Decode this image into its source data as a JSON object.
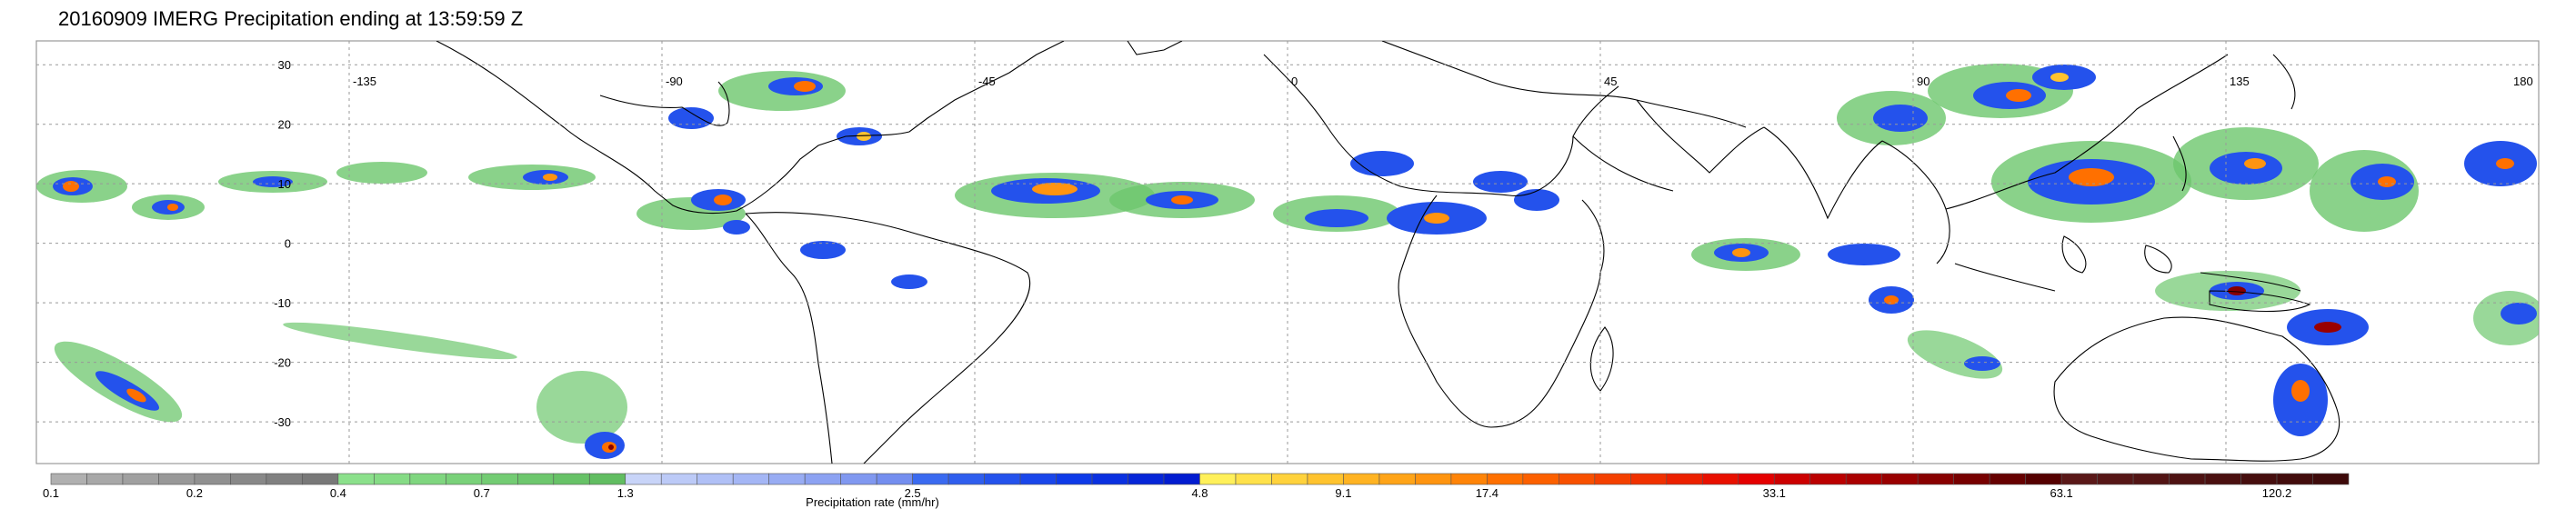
{
  "title": "20160909 IMERG Precipitation ending at 13:59:59 Z",
  "map": {
    "lat_labels": [
      "30",
      "20",
      "10",
      "0",
      "-10",
      "-20",
      "-30"
    ],
    "lat_values": [
      30,
      20,
      10,
      0,
      -10,
      -20,
      -30
    ],
    "lon_labels": [
      "-135",
      "-90",
      "-45",
      "0",
      "45",
      "90",
      "135",
      "180"
    ],
    "lon_values": [
      -135,
      -90,
      -45,
      0,
      45,
      90,
      135,
      180
    ],
    "lat_range": [
      -37,
      34
    ],
    "lon_range": [
      -180,
      180
    ]
  },
  "colorbar": {
    "label": "Precipitation rate (mm/hr)",
    "tick_labels": [
      "0.1",
      "0.2",
      "0.4",
      "0.7",
      "1.3",
      "2.5",
      "4.8",
      "9.1",
      "17.4",
      "33.1",
      "63.1",
      "120.2"
    ],
    "groups": [
      {
        "colors": [
          "#b0b0b0",
          "#a8a8a8",
          "#a0a0a0",
          "#989898",
          "#909090",
          "#888888",
          "#808080",
          "#787878"
        ]
      },
      {
        "colors": [
          "#8be08b",
          "#85db85",
          "#7fd67f",
          "#79d179",
          "#73cc73",
          "#6dc76d",
          "#67c267",
          "#61bd61"
        ]
      },
      {
        "colors": [
          "#c8d4f8",
          "#bccaf7",
          "#b0c0f6",
          "#a4b6f5",
          "#98acf3",
          "#8ca2f2",
          "#8098f0",
          "#748eef"
        ]
      },
      {
        "colors": [
          "#3a6af0",
          "#2f5eee",
          "#2452ec",
          "#1946ea",
          "#0e3ae8",
          "#0a30e0",
          "#0626d8",
          "#021cd0"
        ]
      },
      {
        "colors": [
          "#fff05a",
          "#ffe14a",
          "#ffd23c",
          "#ffc32e",
          "#ffb322",
          "#ffa418",
          "#ff9410",
          "#ff8408"
        ]
      },
      {
        "colors": [
          "#ff7000",
          "#fc6000",
          "#f85000",
          "#f44000",
          "#f03000",
          "#ec2000",
          "#e81000",
          "#e40000"
        ]
      },
      {
        "colors": [
          "#cc0000",
          "#bb0000",
          "#aa0000",
          "#990000",
          "#880000",
          "#770000",
          "#660000",
          "#550000"
        ]
      },
      {
        "colors": [
          "#5a1818",
          "#561616",
          "#521414",
          "#4e1212",
          "#4a1010",
          "#460e0e",
          "#420c0c",
          "#3e0a0a"
        ]
      }
    ]
  }
}
